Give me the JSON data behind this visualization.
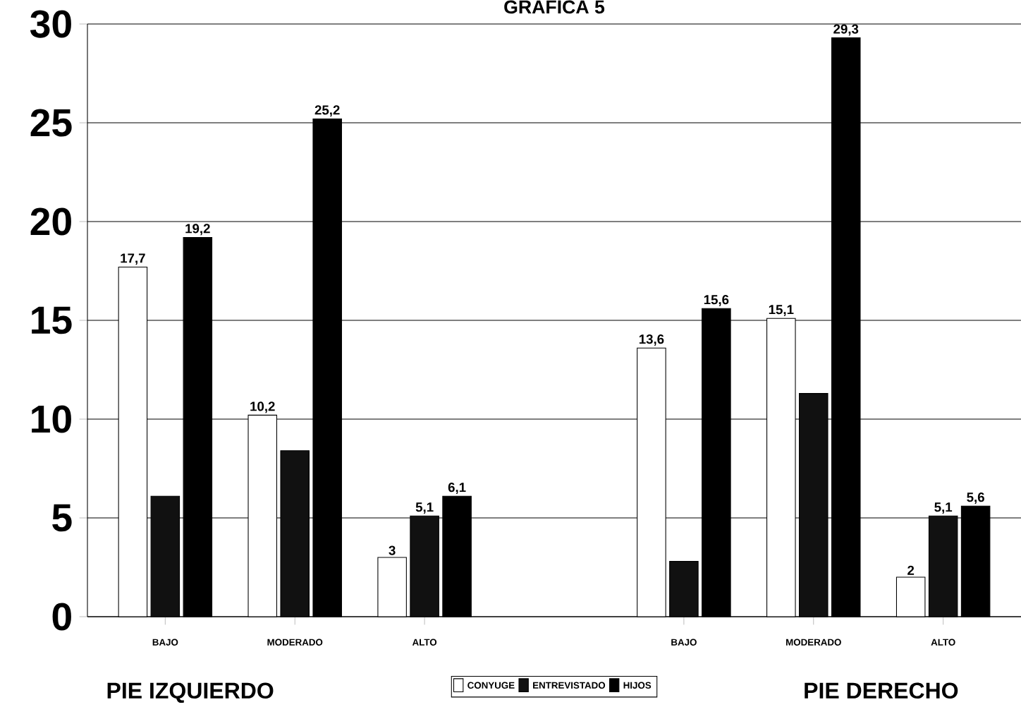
{
  "chart_data": {
    "type": "bar",
    "title": "GRAFICA 5",
    "categories": [
      "BAJO",
      "MODERADO",
      "ALTO",
      null,
      "BAJO",
      "MODERADO",
      "ALTO"
    ],
    "series": [
      {
        "name": "CONYUGE",
        "color": "#ffffff",
        "values": [
          17.7,
          10.2,
          3,
          null,
          13.6,
          15.1,
          2
        ],
        "value_labels": [
          "17,7",
          "10,2",
          "3",
          null,
          "13,6",
          "15,1",
          "2"
        ]
      },
      {
        "name": "ENTREVISTADO",
        "color": "#111111",
        "values": [
          6.1,
          8.4,
          5.1,
          null,
          2.8,
          11.3,
          5.1
        ],
        "value_labels": [
          null,
          null,
          "5,1",
          null,
          null,
          null,
          "5,1"
        ]
      },
      {
        "name": "HIJOS",
        "color": "#000000",
        "values": [
          19.2,
          25.2,
          6.1,
          null,
          15.6,
          29.3,
          5.6
        ],
        "value_labels": [
          "19,2",
          "25,2",
          "6,1",
          null,
          "15,6",
          "29,3",
          "5,6"
        ]
      }
    ],
    "ylim": [
      0,
      30
    ],
    "yticks": [
      0,
      5,
      10,
      15,
      20,
      25,
      30
    ],
    "grid": "y",
    "legend": "bottom",
    "annotations": [
      "PIE IZQUIERDO",
      "PIE DERECHO"
    ]
  }
}
